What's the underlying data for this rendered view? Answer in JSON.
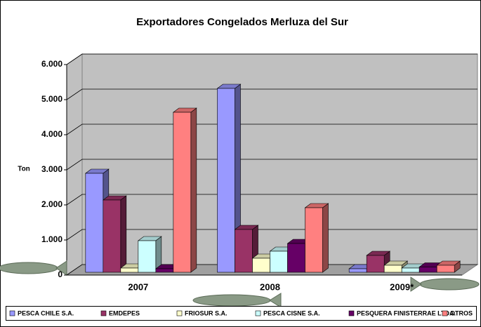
{
  "chart_data": {
    "type": "bar3d",
    "title": "Exportadores Congelados Merluza del Sur",
    "y_label": "Ton",
    "categories": [
      "2007",
      "2008",
      "2009*"
    ],
    "series": [
      {
        "name": "PESCA CHILE S.A.",
        "color": "#9999ff",
        "values": [
          2820,
          5240,
          100
        ]
      },
      {
        "name": "EMDEPES",
        "color": "#993366",
        "values": [
          2060,
          1220,
          480
        ]
      },
      {
        "name": "FRIOSUR S.A.",
        "color": "#ffffcc",
        "values": [
          120,
          400,
          200
        ]
      },
      {
        "name": "PESCA CISNE S.A.",
        "color": "#ccffff",
        "values": [
          900,
          600,
          120
        ]
      },
      {
        "name": "PESQUERA FINISTERRAE LTDA.",
        "color": "#660066",
        "values": [
          100,
          820,
          150
        ]
      },
      {
        "name": "OTROS",
        "color": "#ff8080",
        "values": [
          4560,
          1840,
          200
        ]
      }
    ],
    "ylim": [
      0,
      6000
    ],
    "yticks": [
      {
        "value": 0,
        "label": "0"
      },
      {
        "value": 1000,
        "label": "1.000"
      },
      {
        "value": 2000,
        "label": "2.000"
      },
      {
        "value": 3000,
        "label": "3.000"
      },
      {
        "value": 4000,
        "label": "4.000"
      },
      {
        "value": 5000,
        "label": "5.000"
      },
      {
        "value": 6000,
        "label": "6.000"
      }
    ],
    "grid": true,
    "legend": "bottom"
  }
}
